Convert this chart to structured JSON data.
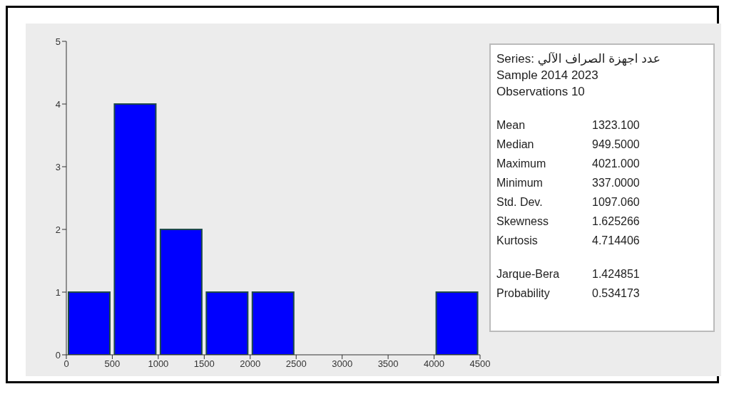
{
  "chart_data": {
    "type": "histogram",
    "bins": [
      0,
      500,
      1000,
      1500,
      2000,
      2500,
      3000,
      3500,
      4000,
      4500
    ],
    "values": [
      1,
      4,
      2,
      1,
      1,
      0,
      0,
      0,
      1
    ],
    "color": "#0000ff",
    "xlim": [
      0,
      4500
    ],
    "xticks": [
      0,
      500,
      1000,
      1500,
      2000,
      2500,
      3000,
      3500,
      4000,
      4500
    ],
    "ylim": [
      0,
      5
    ],
    "yticks": [
      0,
      1,
      2,
      3,
      4,
      5
    ],
    "annotations": [
      "Series: عدد اجهزة الصراف الآلي",
      "Sample 2014 2023",
      "Observations 10",
      "Mean",
      "1323.100",
      "Median",
      "949.5000",
      "Maximum",
      "4021.000",
      "Minimum",
      "337.0000",
      "Std. Dev.",
      "1097.060",
      "Skewness",
      "1.625266",
      "Kurtosis",
      "4.714406",
      "Jarque-Bera",
      "1.424851",
      "Probability",
      "0.534173"
    ]
  }
}
